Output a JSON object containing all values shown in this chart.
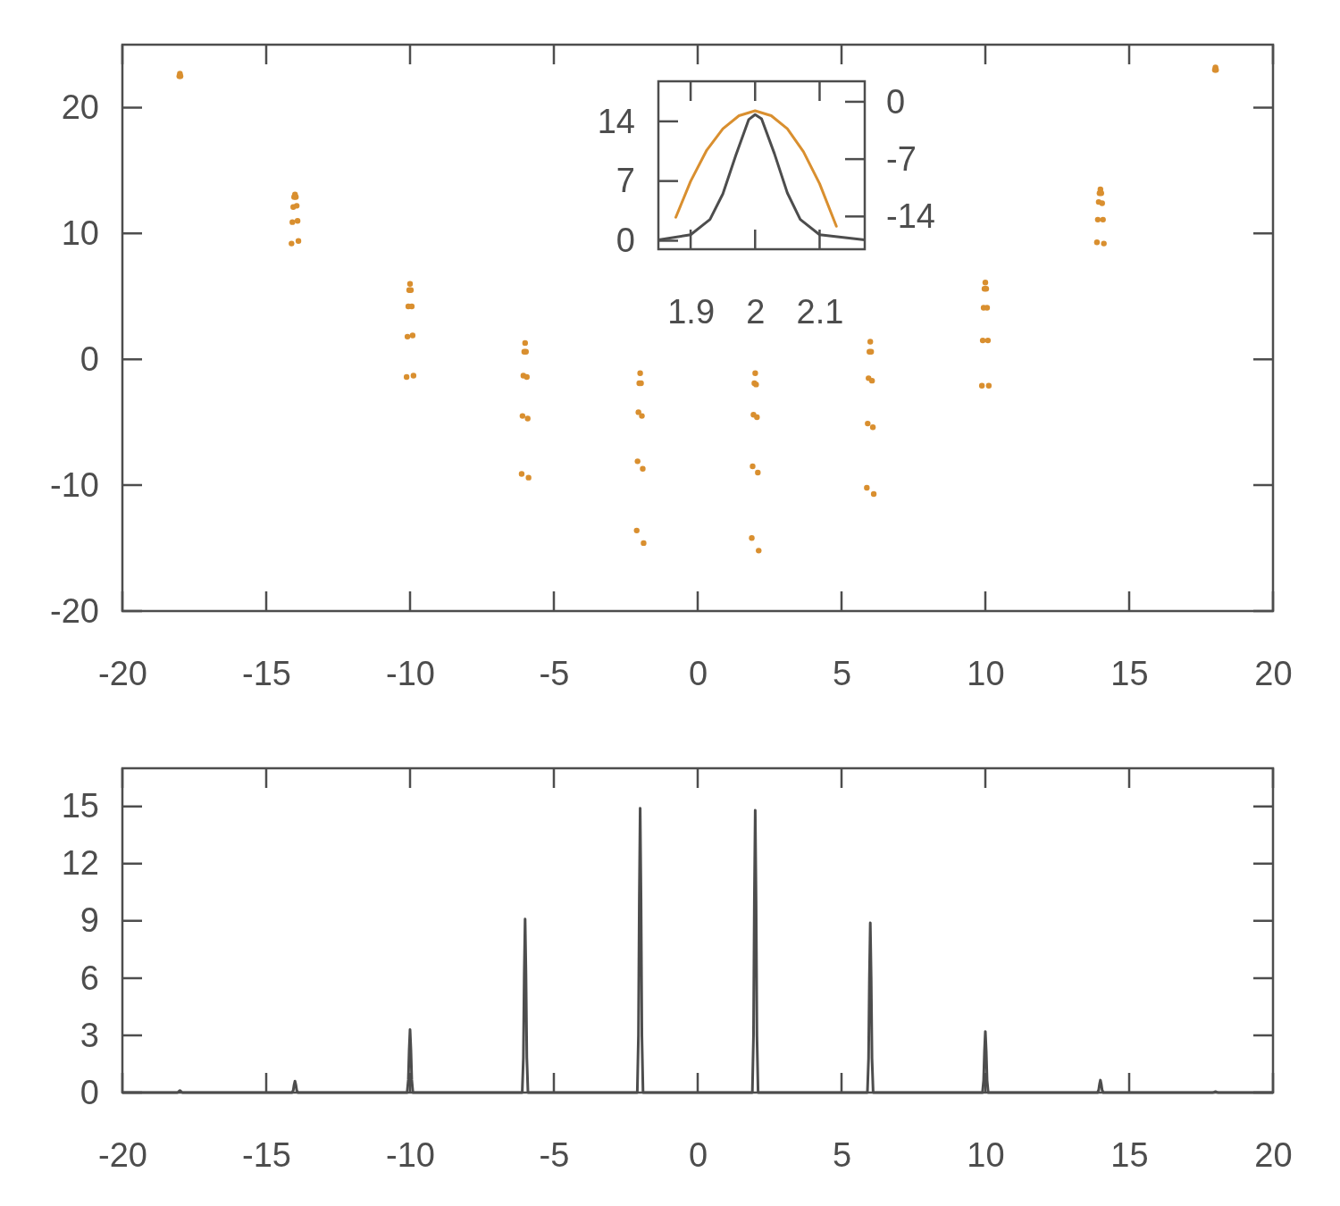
{
  "chart_data": [
    {
      "type": "scatter",
      "xlim": [
        -20,
        20
      ],
      "xticks": [
        -20,
        -15,
        -10,
        -5,
        0,
        5,
        10,
        15,
        20
      ],
      "ylim": [
        -20,
        25
      ],
      "yticks": [
        -20,
        -10,
        0,
        10,
        20
      ],
      "grid": false,
      "marker": "circle",
      "series": [
        {
          "color": "#d98f2f",
          "x": [
            -18.02,
            -18,
            -17.98,
            -14.12,
            -14.09,
            -14.06,
            -14.03,
            -14,
            -13.97,
            -13.94,
            -13.91,
            -13.88,
            -10.12,
            -10.09,
            -10.06,
            -10.03,
            -10,
            -9.97,
            -9.94,
            -9.91,
            -9.88,
            -6.12,
            -6.09,
            -6.06,
            -6.03,
            -6,
            -5.97,
            -5.94,
            -5.91,
            -5.88,
            -2.12,
            -2.09,
            -2.06,
            -2.03,
            -2,
            -1.97,
            -1.94,
            -1.91,
            -1.88,
            1.88,
            1.91,
            1.94,
            1.97,
            2,
            2.03,
            2.06,
            2.09,
            2.12,
            5.88,
            5.91,
            5.94,
            5.97,
            6,
            6.03,
            6.06,
            6.09,
            6.12,
            9.88,
            9.91,
            9.94,
            9.97,
            10,
            10.03,
            10.06,
            10.09,
            10.12,
            13.88,
            13.91,
            13.94,
            13.97,
            14,
            14.03,
            14.06,
            14.09,
            14.12,
            17.98,
            18,
            18.02
          ],
          "values": [
            22.5,
            22.7,
            22.5,
            9.2,
            10.9,
            12.1,
            12.9,
            13.1,
            12.9,
            12.2,
            11.0,
            9.4,
            -1.4,
            1.8,
            4.2,
            5.5,
            6.0,
            5.5,
            4.2,
            1.9,
            -1.3,
            -9.1,
            -4.5,
            -1.3,
            0.6,
            1.3,
            0.6,
            -1.4,
            -4.7,
            -9.4,
            -13.6,
            -8.1,
            -4.2,
            -1.9,
            -1.1,
            -1.9,
            -4.5,
            -8.7,
            -14.6,
            -14.2,
            -8.5,
            -4.4,
            -1.9,
            -1.1,
            -2.0,
            -4.6,
            -9.0,
            -15.2,
            -10.2,
            -5.1,
            -1.5,
            0.6,
            1.4,
            0.6,
            -1.7,
            -5.4,
            -10.7,
            -2.1,
            1.5,
            4.1,
            5.6,
            6.1,
            5.6,
            4.1,
            1.5,
            -2.1,
            9.3,
            11.1,
            12.5,
            13.2,
            13.5,
            13.2,
            12.4,
            11.1,
            9.2,
            23.0,
            23.2,
            23.0
          ]
        }
      ]
    },
    {
      "type": "line",
      "xlim": [
        1.85,
        2.17
      ],
      "xticks": [
        1.9,
        2,
        2.1
      ],
      "ylim": [
        -1,
        18.7
      ],
      "yticks": [
        0,
        7,
        14
      ],
      "y2lim": [
        -18,
        2.5
      ],
      "y2ticks": [
        0,
        -7,
        -14
      ],
      "grid": false,
      "line_style": "solid",
      "series": [
        {
          "color": "#4d4d4d",
          "x": [
            1.85,
            1.9,
            1.93,
            1.95,
            1.97,
            1.99,
            2.0,
            2.01,
            2.03,
            2.05,
            2.07,
            2.1,
            2.17
          ],
          "values": [
            0.1,
            0.7,
            2.5,
            5.5,
            10,
            14.2,
            14.8,
            14.3,
            10.2,
            5.6,
            2.5,
            0.7,
            0.1
          ]
        },
        {
          "color": "#d98f2f",
          "axis": "y2",
          "x": [
            1.877,
            1.9,
            1.925,
            1.95,
            1.975,
            2.0,
            2.025,
            2.05,
            2.075,
            2.1,
            2.126
          ],
          "values": [
            -14.1,
            -9.7,
            -5.9,
            -3.3,
            -1.7,
            -1.1,
            -1.7,
            -3.3,
            -6.1,
            -10,
            -15.2
          ]
        }
      ]
    },
    {
      "type": "line",
      "xlim": [
        -20,
        20
      ],
      "xticks": [
        -20,
        -15,
        -10,
        -5,
        0,
        5,
        10,
        15,
        20
      ],
      "ylim": [
        0,
        17
      ],
      "yticks": [
        0,
        3,
        6,
        9,
        12,
        15
      ],
      "grid": false,
      "line_style": "solid",
      "series": [
        {
          "color": "#4d4d4d",
          "x": [
            -20,
            -18.1,
            -18.06,
            -18.03,
            -18,
            -17.97,
            -17.94,
            -17.9,
            -14.1,
            -14.06,
            -14.03,
            -14,
            -13.97,
            -13.94,
            -13.9,
            -10.1,
            -10.06,
            -10.03,
            -10,
            -9.97,
            -9.94,
            -9.9,
            -6.1,
            -6.06,
            -6.03,
            -6,
            -5.97,
            -5.94,
            -5.9,
            -2.1,
            -2.06,
            -2.03,
            -2,
            -1.97,
            -1.94,
            -1.9,
            1.9,
            1.94,
            1.97,
            2,
            2.03,
            2.06,
            2.1,
            5.9,
            5.94,
            5.97,
            6,
            6.03,
            6.06,
            6.1,
            9.9,
            9.94,
            9.97,
            10,
            10.03,
            10.06,
            10.1,
            13.9,
            13.94,
            13.97,
            14,
            14.03,
            14.06,
            14.1,
            17.9,
            17.94,
            17.97,
            18,
            18.03,
            18.06,
            18.1,
            20
          ],
          "values": [
            0,
            0,
            0.02,
            0.07,
            0.1,
            0.07,
            0.02,
            0,
            0,
            0.12,
            0.41,
            0.6,
            0.41,
            0.12,
            0,
            0,
            0.66,
            2.24,
            3.3,
            2.24,
            0.66,
            0,
            0,
            1.82,
            6.19,
            9.1,
            6.19,
            1.82,
            0,
            0,
            2.98,
            10.13,
            14.9,
            10.13,
            2.98,
            0,
            0,
            2.96,
            10.06,
            14.8,
            10.06,
            2.96,
            0,
            0,
            1.78,
            6.05,
            8.9,
            6.05,
            1.78,
            0,
            0,
            0.64,
            2.18,
            3.2,
            2.18,
            0.64,
            0,
            0,
            0.13,
            0.44,
            0.65,
            0.44,
            0.13,
            0,
            0,
            0.01,
            0.03,
            0.05,
            0.03,
            0.01,
            0,
            0
          ]
        }
      ]
    }
  ]
}
